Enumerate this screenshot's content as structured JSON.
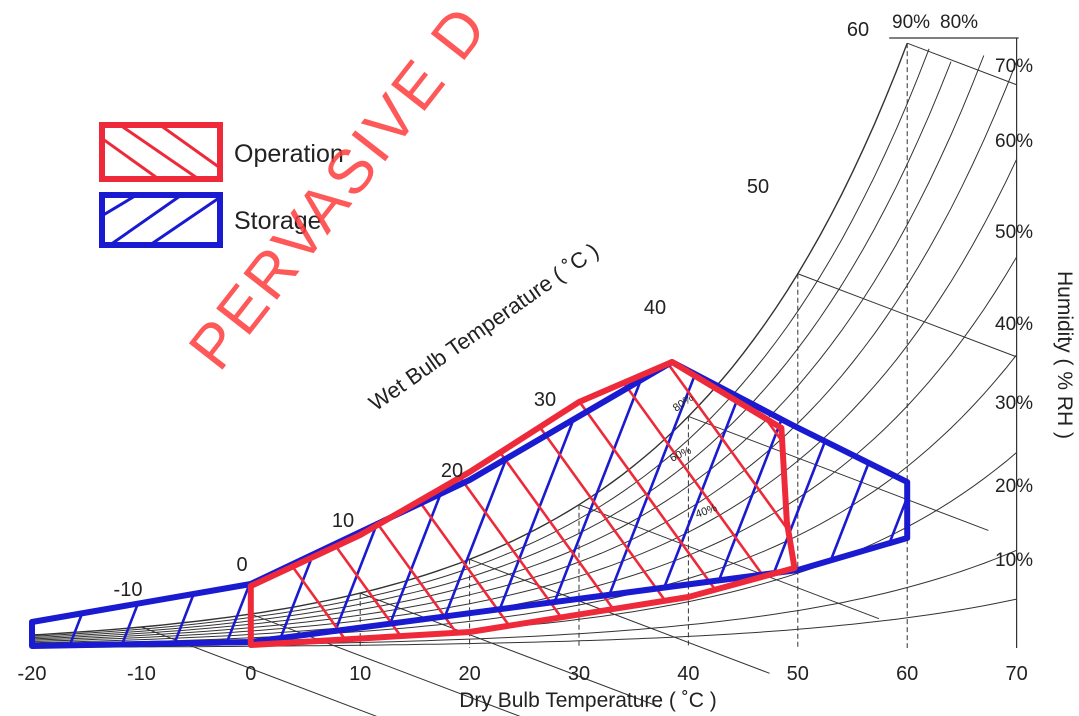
{
  "chart_data": {
    "type": "psychrometric",
    "xlabel": "Dry Bulb Temperature ( ˚C )",
    "ylabel": "Humidity ( % RH )",
    "wet_bulb_title": "Wet Bulb Temperature ( ˚C )",
    "xlim": [
      -20,
      70
    ],
    "x_ticks": [
      "-20",
      "-10",
      "0",
      "10",
      "20",
      "30",
      "40",
      "50",
      "60",
      "70"
    ],
    "rh_ticks": [
      "10%",
      "20%",
      "30%",
      "40%",
      "50%",
      "60%",
      "70%"
    ],
    "rh_top_labels": [
      "90%",
      "80%"
    ],
    "wet_bulb_ticks": [
      "-10",
      "0",
      "10",
      "20",
      "30",
      "40",
      "50",
      "60"
    ],
    "inner_rh_labels": [
      "80%",
      "60%",
      "40%"
    ],
    "legend": [
      {
        "name": "Operation",
        "color": "#ee2a3a"
      },
      {
        "name": "Storage",
        "color": "#1a1ad0"
      }
    ],
    "regions": [
      {
        "name": "Operation",
        "dry_bulb_range": [
          0,
          50
        ],
        "note": "region bounded by dry bulb 0–50 ˚C"
      },
      {
        "name": "Storage",
        "dry_bulb_range": [
          -20,
          60
        ],
        "note": "region bounded by dry bulb -20–60 ˚C"
      }
    ],
    "watermark": "PERVASIVE D",
    "colors": {
      "operation": "#ee2a3a",
      "storage": "#1a1ad0",
      "grid": "#333333"
    }
  }
}
